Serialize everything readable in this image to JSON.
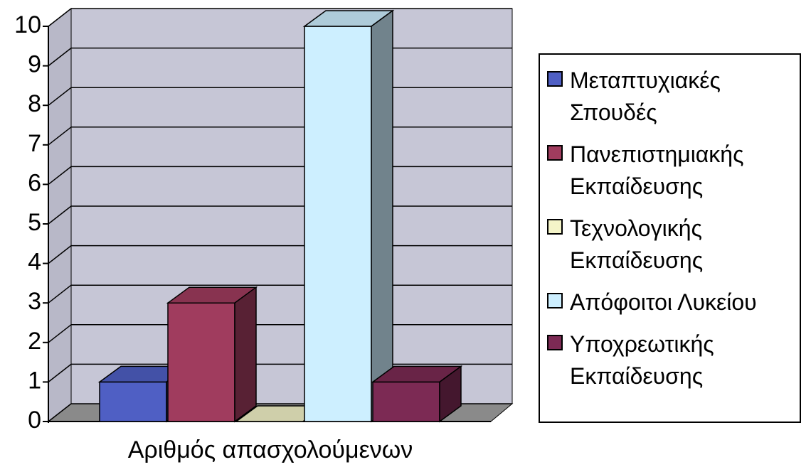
{
  "chart_data": {
    "type": "bar",
    "categories": [
      "Αριθμός απασχολούμενων"
    ],
    "series": [
      {
        "name": "Μεταπτυχιακές Σπουδές",
        "color": "#4f5fc4",
        "values": [
          1
        ]
      },
      {
        "name": "Πανεπιστημιακής Εκπαίδευσης",
        "color": "#a03c5e",
        "values": [
          3
        ]
      },
      {
        "name": "Τεχνολογικής Εκπαίδευσης",
        "color": "#f4f4c8",
        "values": [
          0
        ]
      },
      {
        "name": "Απόφοιτοι Λυκείου",
        "color": "#cdefff",
        "values": [
          10
        ]
      },
      {
        "name": "Υποχρεωτικής Εκπαίδευσης",
        "color": "#7c2a54",
        "values": [
          1
        ]
      }
    ],
    "ylim": [
      0,
      10
    ],
    "yticks": [
      0,
      1,
      2,
      3,
      4,
      5,
      6,
      7,
      8,
      9,
      10
    ],
    "grid": true
  }
}
